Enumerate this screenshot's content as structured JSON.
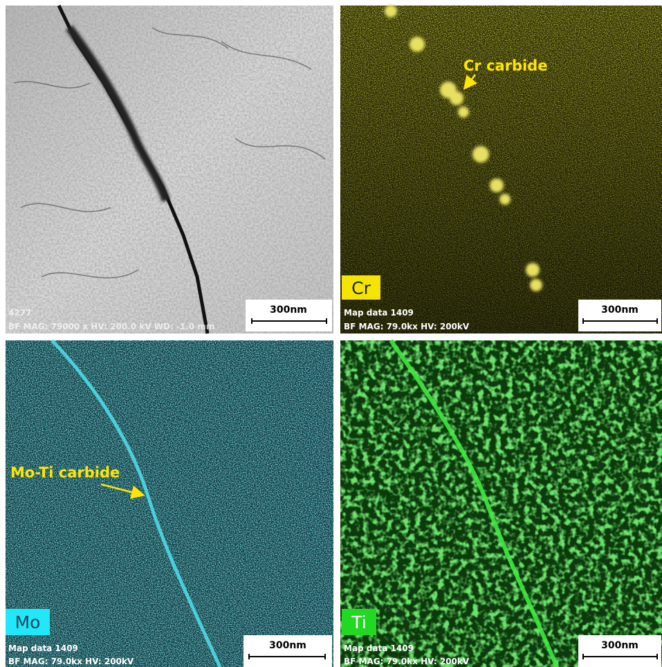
{
  "panels": [
    {
      "caption_lines": [
        "4277",
        "BF MAG: 79000 x HV: 200.0 kV WD: -1.0 mm"
      ],
      "scale_bar": "300nm"
    },
    {
      "element": "Cr",
      "annotation": "Cr carbide",
      "caption_lines": [
        "Map data 1409",
        "BF MAG: 79.0kx HV: 200kV"
      ],
      "scale_bar": "300nm"
    },
    {
      "element": "Mo",
      "annotation": "Mo-Ti carbide",
      "caption_lines": [
        "Map data 1409",
        "BF MAG: 79.0kx HV: 200kV"
      ],
      "scale_bar": "300nm"
    },
    {
      "element": "Ti",
      "caption_lines": [
        "Map data 1409",
        "BF MAG: 79.0kx HV: 200kV"
      ],
      "scale_bar": "300nm"
    }
  ]
}
